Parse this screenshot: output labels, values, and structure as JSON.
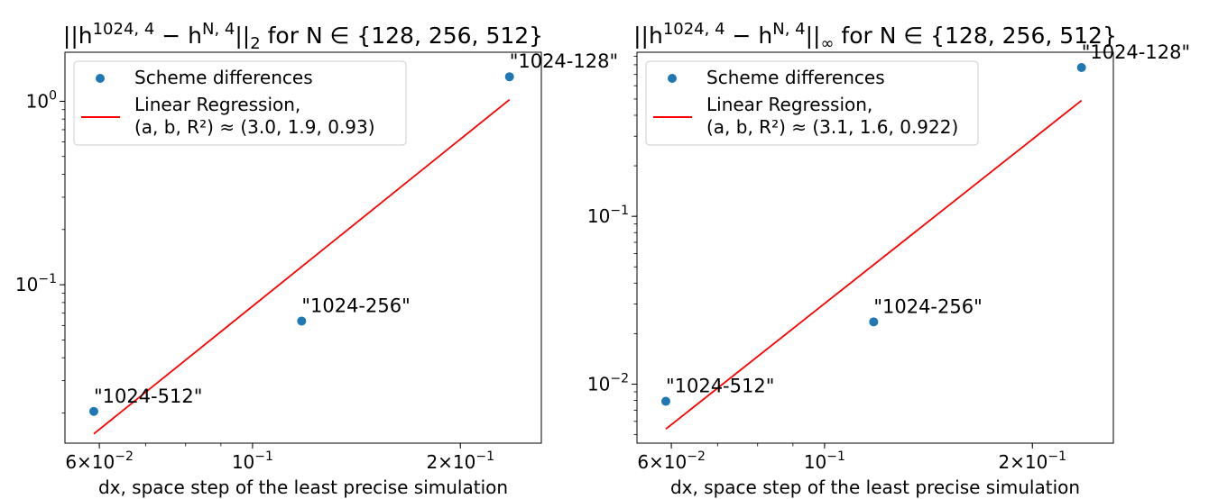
{
  "chart_data": [
    {
      "type": "scatter",
      "title": "||h^{1024,4} − h^{N,4}||_2 for N ∈ {128, 256, 512}",
      "title_parts": {
        "pre": "||h",
        "sup1": "1024, 4",
        "mid": " − h",
        "sup2": "N, 4",
        "post": "||",
        "sub": "2",
        "tail": " for N ∈ {128, 256, 512}"
      },
      "xlabel": "dx, space step of the least precise simulation",
      "xscale": "log",
      "yscale": "log",
      "xlim": [
        0.0535,
        0.262
      ],
      "ylim": [
        0.0137,
        1.85
      ],
      "x_ticks": [
        {
          "value": 0.06,
          "base": "6×10",
          "exp": "−2"
        },
        {
          "value": 0.1,
          "base": "10",
          "exp": "−1"
        },
        {
          "value": 0.2,
          "base": "2×10",
          "exp": "−1"
        }
      ],
      "y_ticks": [
        {
          "value": 1,
          "base": "10",
          "exp": "0"
        },
        {
          "value": 0.1,
          "base": "10",
          "exp": "−1"
        }
      ],
      "series": [
        {
          "name": "Scheme differences",
          "color": "#1f77b4",
          "points": [
            {
              "x": 0.0589,
              "y": 0.0204,
              "label": "\"1024-512\""
            },
            {
              "x": 0.1178,
              "y": 0.0634,
              "label": "\"1024-256\""
            },
            {
              "x": 0.2356,
              "y": 1.36,
              "label": "\"1024-128\""
            }
          ]
        },
        {
          "name": "Linear Regression,",
          "name_line2": " (a, b, R²) ≈ (3.0, 1.9, 0.93)",
          "color": "#ff0000",
          "line": [
            {
              "x": 0.0589,
              "y": 0.0154
            },
            {
              "x": 0.2356,
              "y": 1.02
            }
          ]
        }
      ],
      "legend_position": "upper left",
      "grid": false
    },
    {
      "type": "scatter",
      "title": "||h^{1024,4} − h^{N,4}||_∞ for N ∈ {128, 256, 512}",
      "title_parts": {
        "pre": "||h",
        "sup1": "1024, 4",
        "mid": " − h",
        "sup2": "N, 4",
        "post": "||",
        "sub": "∞",
        "tail": " for N ∈ {128, 256, 512}"
      },
      "xlabel": "dx, space step of the least precise simulation",
      "xscale": "log",
      "yscale": "log",
      "xlim": [
        0.0535,
        0.262
      ],
      "ylim": [
        0.00445,
        0.95
      ],
      "x_ticks": [
        {
          "value": 0.06,
          "base": "6×10",
          "exp": "−2"
        },
        {
          "value": 0.1,
          "base": "10",
          "exp": "−1"
        },
        {
          "value": 0.2,
          "base": "2×10",
          "exp": "−1"
        }
      ],
      "y_ticks": [
        {
          "value": 0.1,
          "base": "10",
          "exp": "−1"
        },
        {
          "value": 0.01,
          "base": "10",
          "exp": "−2"
        }
      ],
      "series": [
        {
          "name": "Scheme differences",
          "color": "#1f77b4",
          "points": [
            {
              "x": 0.0589,
              "y": 0.0079,
              "label": "\"1024-512\""
            },
            {
              "x": 0.1178,
              "y": 0.0235,
              "label": "\"1024-256\""
            },
            {
              "x": 0.2356,
              "y": 0.77,
              "label": "\"1024-128\""
            }
          ]
        },
        {
          "name": "Linear Regression,",
          "name_line2": " (a, b, R²) ≈ (3.1, 1.6, 0.922)",
          "color": "#ff0000",
          "line": [
            {
              "x": 0.0589,
              "y": 0.0054
            },
            {
              "x": 0.2356,
              "y": 0.49
            }
          ]
        }
      ],
      "legend_position": "upper left",
      "grid": false
    }
  ]
}
